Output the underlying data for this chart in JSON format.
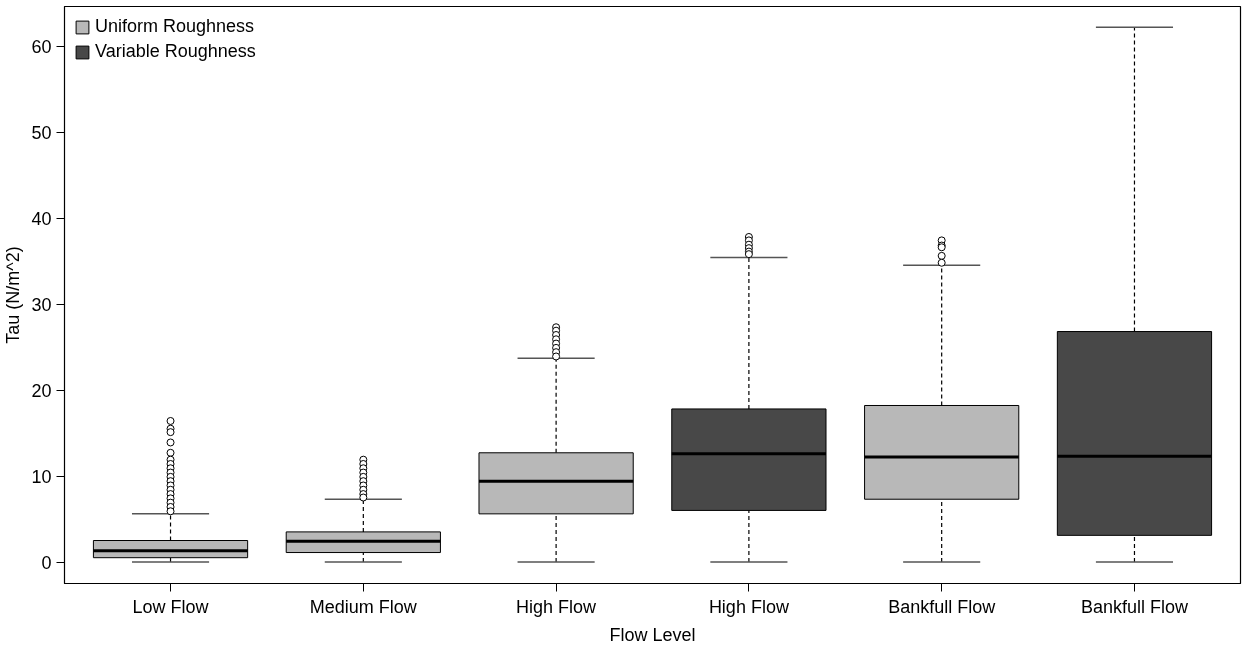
{
  "chart_data": {
    "type": "box",
    "xlabel": "Flow Level",
    "ylabel": "Tau (N/m^2)",
    "categories": [
      "Low Flow",
      "Medium Flow",
      "High Flow",
      "High Flow",
      "Bankfull Flow",
      "Bankfull Flow"
    ],
    "ylim": [
      -2.4,
      64.7
    ],
    "yticks": [
      0,
      10,
      20,
      30,
      40,
      50,
      60
    ],
    "grid": false,
    "legend": "top left",
    "series": [
      {
        "name": "Uniform Roughness",
        "color": "#b8b8b8",
        "boxes": [
          {
            "low": 0.1,
            "q1": 0.6,
            "median": 1.4,
            "q3": 2.6,
            "high": 5.7,
            "outliers": [
              16.5,
              15.6,
              15.2,
              14.0,
              12.8,
              12.0,
              11.5,
              11.0,
              10.5,
              10.0,
              9.5,
              9.0,
              8.5,
              8.0,
              7.5,
              7.0,
              6.5,
              6.0
            ]
          },
          {
            "low": 0.1,
            "q1": 1.2,
            "median": 2.5,
            "q3": 3.6,
            "high": 7.4,
            "outliers": [
              12.0,
              11.5,
              11.0,
              10.5,
              10.0,
              9.5,
              9.0,
              8.5,
              8.0,
              7.6
            ]
          },
          {
            "low": 0.1,
            "q1": 5.7,
            "median": 9.5,
            "q3": 12.8,
            "high": 23.8,
            "outliers": [
              27.4,
              27.0,
              26.5,
              26.0,
              25.5,
              25.0,
              24.5,
              24.0
            ]
          },
          null,
          {
            "low": 0.1,
            "q1": 7.4,
            "median": 12.3,
            "q3": 18.3,
            "high": 34.6,
            "outliers": [
              37.5,
              36.9,
              36.7,
              35.7,
              34.9
            ]
          },
          null
        ]
      },
      {
        "name": "Variable Roughness",
        "color": "#484848",
        "boxes": [
          null,
          null,
          null,
          {
            "low": 0.1,
            "q1": 6.1,
            "median": 12.7,
            "q3": 17.9,
            "high": 35.5,
            "outliers": [
              37.9,
              37.5,
              37.0,
              36.6,
              36.2,
              35.9
            ]
          },
          null,
          {
            "low": 0.1,
            "q1": 3.2,
            "median": 12.4,
            "q3": 26.9,
            "high": 62.3
          }
        ]
      }
    ]
  }
}
